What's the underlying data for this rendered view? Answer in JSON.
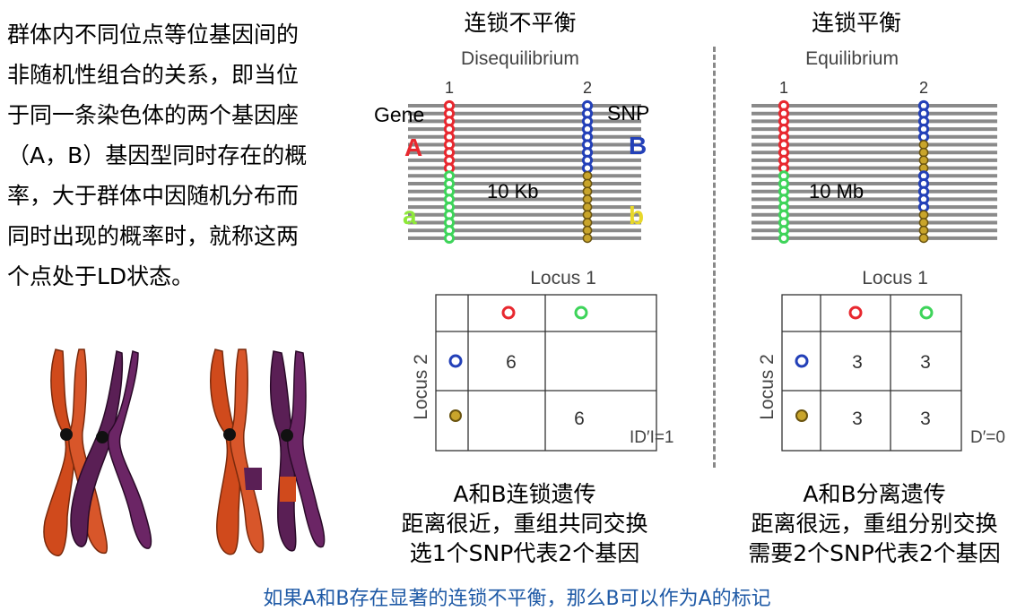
{
  "intro": {
    "lines": [
      "群体内不同位点等位基因间的",
      "非随机性组合的关系，即当位",
      "于同一条染色体的两个基因座",
      "（A，B）基因型同时存在的概",
      "率，大于群体中因随机分布而",
      "同时出现的概率时，就称这两",
      "个点处于LD状态。"
    ]
  },
  "chromosome_caption": "(chromosome illustration)",
  "left": {
    "title": "连锁不平衡",
    "panel_label": "Disequilibrium",
    "locus1_num": "1",
    "locus2_num": "2",
    "gene_label": "Gene",
    "snp_label": "SNP",
    "allele_A": "A",
    "allele_a": "a",
    "allele_B": "B",
    "allele_b": "b",
    "distance": "10 Kb",
    "table": {
      "locus1": "Locus 1",
      "locus2": "Locus 2",
      "cells": [
        [
          "6",
          ""
        ],
        [
          "",
          "6"
        ]
      ],
      "stat": "ID′I=1"
    },
    "bottom": [
      "A和B连锁遗传",
      "距离很近，重组共同交换",
      "选1个SNP代表2个基因"
    ]
  },
  "right": {
    "title": "连锁平衡",
    "panel_label": "Equilibrium",
    "locus1_num": "1",
    "locus2_num": "2",
    "distance": "10 Mb",
    "table": {
      "locus1": "Locus 1",
      "locus2": "Locus 2",
      "cells": [
        [
          "3",
          "3"
        ],
        [
          "3",
          "3"
        ]
      ],
      "stat": "D′=0"
    },
    "bottom": [
      "A和B分离遗传",
      "距离很远，重组分别交换",
      "需要2个SNP代表2个基因"
    ]
  },
  "footer": "如果A和B存在显著的连锁不平衡，那么B可以作为A的标记",
  "colors": {
    "red": "#e8282f",
    "green": "#3ed45a",
    "blue": "#2340b8",
    "gold": "#c9a52b",
    "line": "#8a8a8a",
    "footer": "#1f5aa6"
  }
}
